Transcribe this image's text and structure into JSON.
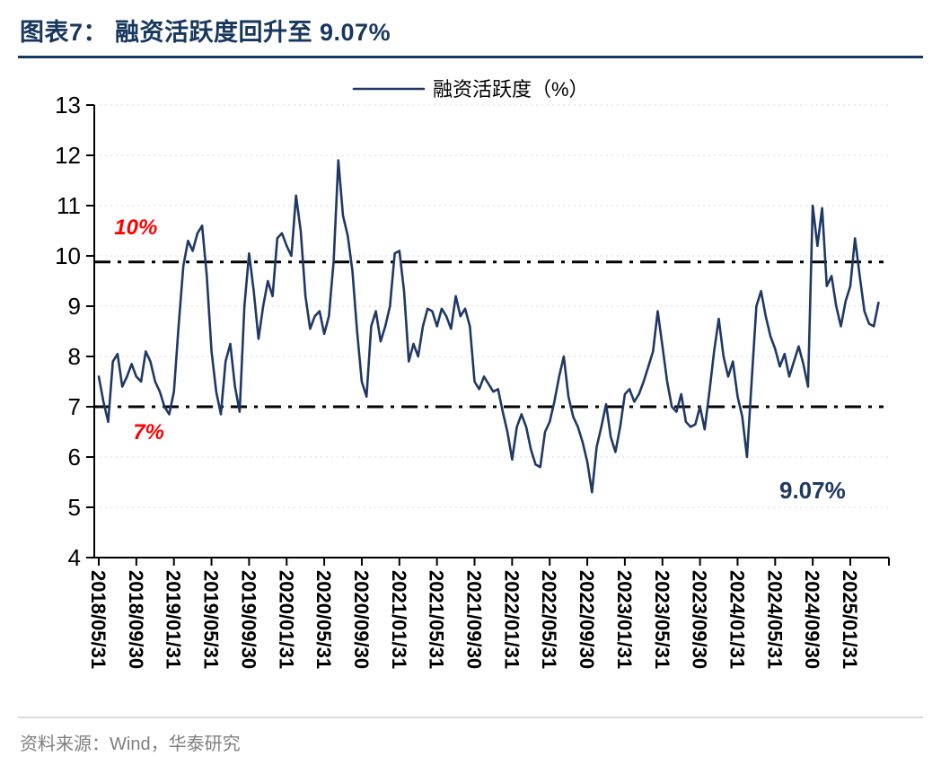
{
  "page": {
    "title": "图表7：  融资活跃度回升至 9.07%",
    "source": "资料来源：Wind，华泰研究"
  },
  "chart_data": {
    "type": "line",
    "series_name": "融资活跃度（%）",
    "legend_position": "top-center",
    "grid": "dotted-horizontal",
    "line_color": "#1F3864",
    "ylim": [
      4,
      13
    ],
    "y_ticks": [
      4,
      5,
      6,
      7,
      8,
      9,
      10,
      11,
      12,
      13
    ],
    "x_tick_every": 8,
    "x_tick_labels": [
      "2018/05/31",
      "2018/09/30",
      "2019/01/31",
      "2019/05/31",
      "2019/09/30",
      "2020/01/31",
      "2020/05/31",
      "2020/09/30",
      "2021/01/31",
      "2021/05/31",
      "2021/09/30",
      "2022/01/31",
      "2022/05/31",
      "2022/09/30",
      "2023/01/31",
      "2023/05/31",
      "2023/09/30",
      "2024/01/31",
      "2024/05/31",
      "2024/09/30",
      "2025/01/31"
    ],
    "reference_lines": [
      {
        "label": "10%",
        "value": 10,
        "draw_at": 9.88,
        "color": "#000000",
        "label_color": "#FF0000"
      },
      {
        "label": "7%",
        "value": 7,
        "draw_at": 7.0,
        "color": "#000000",
        "label_color": "#FF0000"
      }
    ],
    "annotations": [
      {
        "text": "10%",
        "x_index": 3.3,
        "y_value": 10.43,
        "color": "#FF0000",
        "italic": true,
        "size": 24
      },
      {
        "text": "7%",
        "x_index": 7.3,
        "y_value": 6.36,
        "color": "#FF0000",
        "italic": true,
        "size": 24
      },
      {
        "text": "9.07%",
        "x_index": 144.9,
        "y_value": 5.18,
        "color": "#1F3864",
        "italic": false,
        "size": 26
      }
    ],
    "last_value": 9.07,
    "values": [
      7.6,
      7.1,
      6.7,
      7.9,
      8.05,
      7.4,
      7.6,
      7.85,
      7.6,
      7.5,
      8.1,
      7.9,
      7.5,
      7.3,
      7.0,
      6.85,
      7.3,
      8.6,
      9.8,
      10.3,
      10.1,
      10.45,
      10.6,
      9.6,
      8.1,
      7.3,
      6.85,
      7.9,
      8.25,
      7.4,
      6.9,
      9.0,
      10.05,
      9.3,
      8.35,
      9.0,
      9.5,
      9.2,
      10.35,
      10.45,
      10.2,
      10.0,
      11.2,
      10.5,
      9.2,
      8.55,
      8.8,
      8.9,
      8.45,
      8.8,
      9.9,
      11.9,
      10.8,
      10.4,
      9.7,
      8.5,
      7.5,
      7.2,
      8.6,
      8.9,
      8.3,
      8.6,
      9.0,
      10.05,
      10.1,
      9.3,
      7.9,
      8.25,
      8.0,
      8.6,
      8.95,
      8.9,
      8.6,
      8.95,
      8.8,
      8.55,
      9.2,
      8.8,
      8.95,
      8.6,
      7.5,
      7.35,
      7.6,
      7.45,
      7.3,
      7.35,
      6.9,
      6.5,
      5.95,
      6.6,
      6.85,
      6.6,
      6.15,
      5.85,
      5.8,
      6.5,
      6.7,
      7.1,
      7.6,
      8.0,
      7.2,
      6.8,
      6.6,
      6.3,
      5.9,
      5.3,
      6.2,
      6.6,
      7.05,
      6.4,
      6.1,
      6.6,
      7.25,
      7.35,
      7.1,
      7.25,
      7.5,
      7.8,
      8.1,
      8.9,
      8.2,
      7.5,
      7.0,
      6.9,
      7.25,
      6.7,
      6.6,
      6.65,
      7.0,
      6.55,
      7.3,
      8.1,
      8.75,
      8.0,
      7.6,
      7.9,
      7.2,
      6.8,
      6.0,
      7.5,
      9.0,
      9.3,
      8.8,
      8.4,
      8.15,
      7.8,
      8.05,
      7.6,
      7.9,
      8.2,
      7.85,
      7.4,
      11.0,
      10.2,
      10.95,
      9.4,
      9.6,
      9.0,
      8.6,
      9.1,
      9.4,
      10.35,
      9.6,
      8.9,
      8.65,
      8.6,
      9.07
    ]
  }
}
